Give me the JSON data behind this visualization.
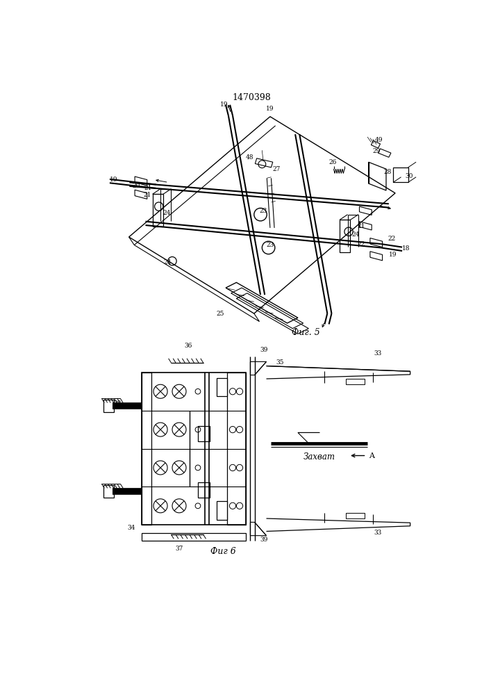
{
  "title": "1470398",
  "fig5_caption": "Фиг. 5",
  "fig6_caption": "Фиг 6",
  "bg_color": "#ffffff",
  "zakhvat_label": "Захват",
  "A_label": "A"
}
